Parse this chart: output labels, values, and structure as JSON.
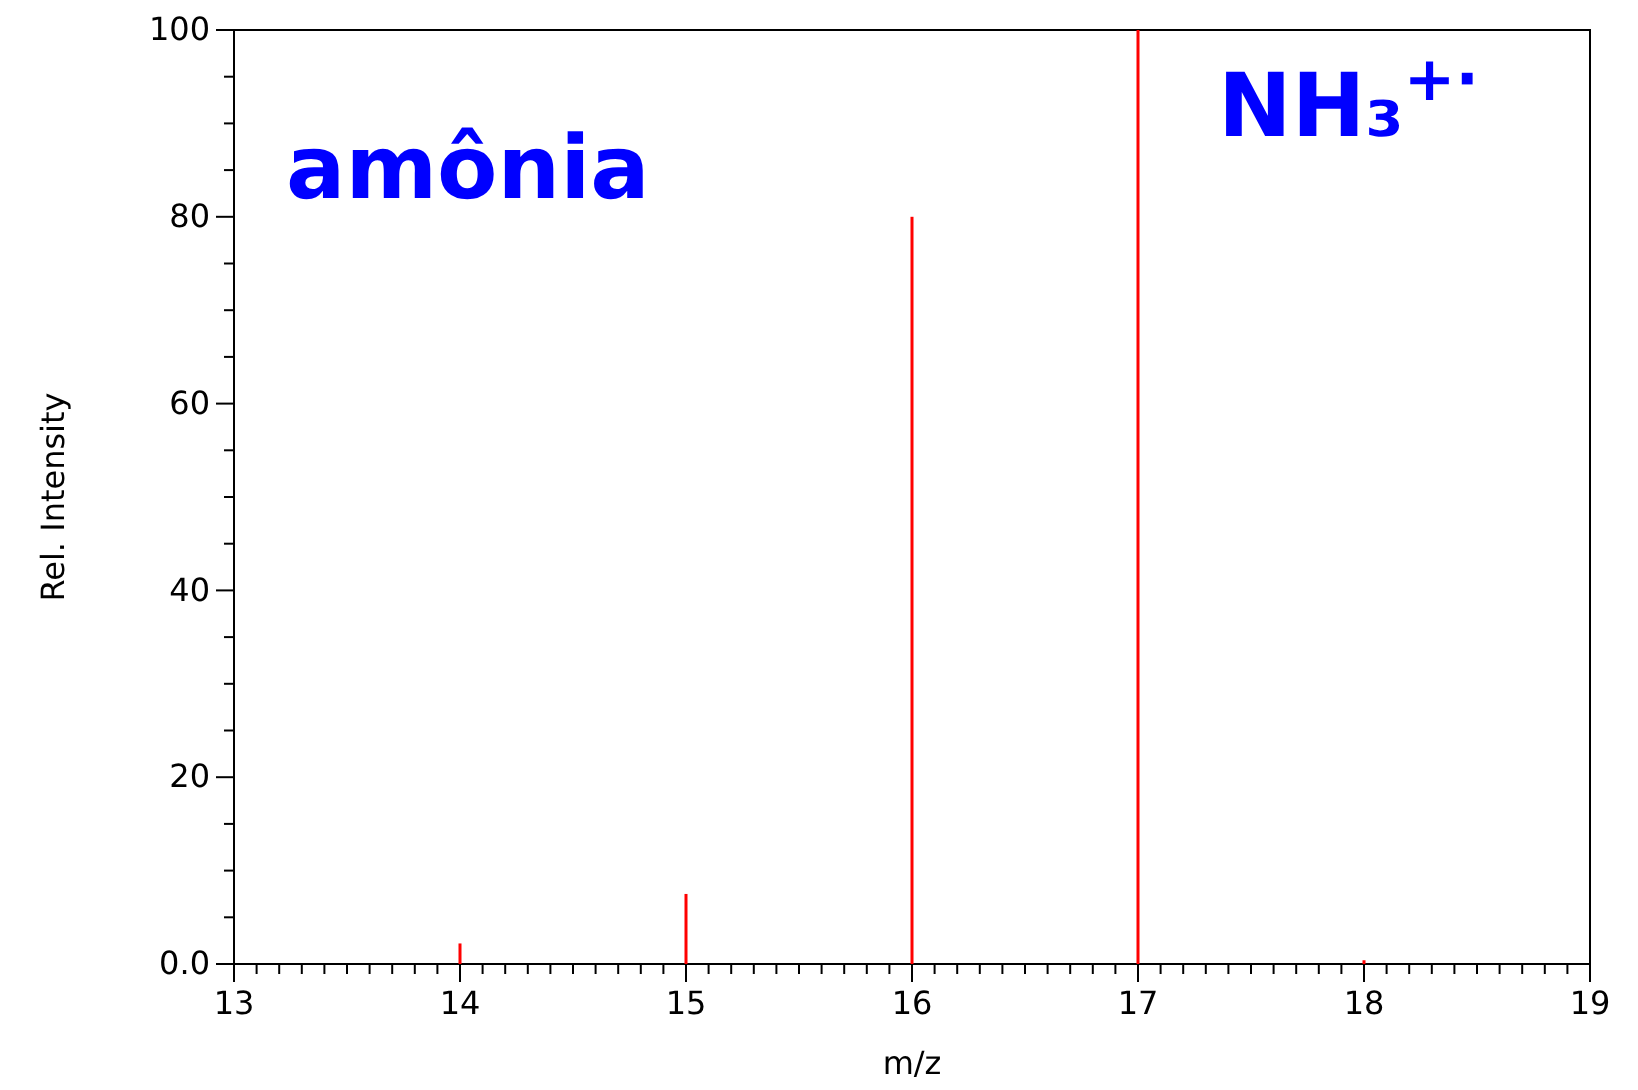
{
  "chart_data": {
    "type": "bar",
    "xlabel": "m/z",
    "ylabel": "Rel. Intensity",
    "x": [
      14,
      15,
      16,
      17,
      18
    ],
    "values": [
      2.2,
      7.5,
      80,
      100,
      0.4
    ],
    "color": "#ff0000",
    "xlim": [
      13,
      19
    ],
    "ylim": [
      0,
      100
    ],
    "xticks": [
      13,
      {
        "value": 13.1,
        "label": null
      },
      {
        "value": 13.2,
        "label": null
      },
      {
        "value": 13.3,
        "label": null
      },
      {
        "value": 13.4,
        "label": null
      },
      {
        "value": 13.5,
        "label": null
      },
      {
        "value": 13.6,
        "label": null
      },
      {
        "value": 13.7,
        "label": null
      },
      {
        "value": 13.8,
        "label": null
      },
      {
        "value": 13.9,
        "label": null
      },
      14,
      {
        "value": 14.1,
        "label": null
      },
      {
        "value": 14.2,
        "label": null
      },
      {
        "value": 14.3,
        "label": null
      },
      {
        "value": 14.4,
        "label": null
      },
      {
        "value": 14.5,
        "label": null
      },
      {
        "value": 14.6,
        "label": null
      },
      {
        "value": 14.7,
        "label": null
      },
      {
        "value": 14.8,
        "label": null
      },
      {
        "value": 14.9,
        "label": null
      },
      15,
      {
        "value": 15.1,
        "label": null
      },
      {
        "value": 15.2,
        "label": null
      },
      {
        "value": 15.3,
        "label": null
      },
      {
        "value": 15.4,
        "label": null
      },
      {
        "value": 15.5,
        "label": null
      },
      {
        "value": 15.6,
        "label": null
      },
      {
        "value": 15.7,
        "label": null
      },
      {
        "value": 15.8,
        "label": null
      },
      {
        "value": 15.9,
        "label": null
      },
      16,
      {
        "value": 16.1,
        "label": null
      },
      {
        "value": 16.2,
        "label": null
      },
      {
        "value": 16.3,
        "label": null
      },
      {
        "value": 16.4,
        "label": null
      },
      {
        "value": 16.5,
        "label": null
      },
      {
        "value": 16.6,
        "label": null
      },
      {
        "value": 16.7,
        "label": null
      },
      {
        "value": 16.8,
        "label": null
      },
      {
        "value": 16.9,
        "label": null
      },
      17,
      {
        "value": 17.1,
        "label": null
      },
      {
        "value": 17.2,
        "label": null
      },
      {
        "value": 17.3,
        "label": null
      },
      {
        "value": 17.4,
        "label": null
      },
      {
        "value": 17.5,
        "label": null
      },
      {
        "value": 17.6,
        "label": null
      },
      {
        "value": 17.7,
        "label": null
      },
      {
        "value": 17.8,
        "label": null
      },
      {
        "value": 17.9,
        "label": null
      },
      18,
      {
        "value": 18.1,
        "label": null
      },
      {
        "value": 18.2,
        "label": null
      },
      {
        "value": 18.3,
        "label": null
      },
      {
        "value": 18.4,
        "label": null
      },
      {
        "value": 18.5,
        "label": null
      },
      {
        "value": 18.6,
        "label": null
      },
      {
        "value": 18.7,
        "label": null
      },
      {
        "value": 18.8,
        "label": null
      },
      {
        "value": 18.9,
        "label": null
      },
      19
    ],
    "yticks": [
      {
        "value": 0,
        "label": "0.0"
      },
      {
        "value": 5,
        "label": null
      },
      {
        "value": 10,
        "label": null
      },
      {
        "value": 15,
        "label": null
      },
      20,
      {
        "value": 25,
        "label": null
      },
      {
        "value": 30,
        "label": null
      },
      {
        "value": 35,
        "label": null
      },
      40,
      {
        "value": 45,
        "label": null
      },
      {
        "value": 50,
        "label": null
      },
      {
        "value": 55,
        "label": null
      },
      60,
      {
        "value": 65,
        "label": null
      },
      {
        "value": 70,
        "label": null
      },
      {
        "value": 75,
        "label": null
      },
      80,
      {
        "value": 85,
        "label": null
      },
      {
        "value": 90,
        "label": null
      },
      {
        "value": 95,
        "label": null
      },
      100
    ],
    "annotations": [
      "amônia",
      "NH₃$^{+·}$"
    ]
  }
}
